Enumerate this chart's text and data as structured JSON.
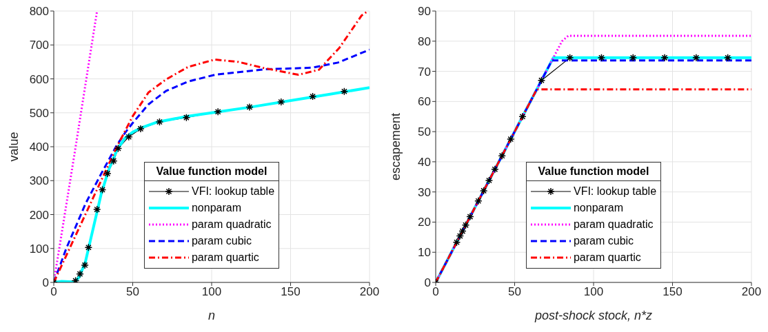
{
  "chart_data": [
    {
      "type": "line",
      "xlabel": "n",
      "ylabel": "value",
      "legend_title": "Value function model",
      "legend": "bottom",
      "grid": true,
      "xlim": [
        0,
        200
      ],
      "xticks": [
        0,
        50,
        100,
        150,
        200
      ],
      "ylim": [
        0,
        800
      ],
      "yticks": [
        0,
        100,
        200,
        300,
        400,
        500,
        600,
        700,
        800
      ],
      "series": [
        {
          "name": "VFI: lookup table",
          "color": "#000000",
          "marker": "cross",
          "line_style": "solid",
          "x": [
            0,
            13.8,
            16.6,
            19.7,
            22,
            27.4,
            30.8,
            34,
            37.9,
            40.8,
            47.5,
            55,
            67,
            84,
            104,
            124,
            144,
            164,
            184
          ],
          "values": [
            0,
            5,
            25,
            51,
            103,
            215,
            273,
            321,
            358,
            395,
            429,
            453,
            473,
            486,
            503,
            517,
            532,
            548,
            563
          ]
        },
        {
          "name": "nonparam",
          "color": "#00ffff",
          "marker": "none",
          "line_style": "solid",
          "x": [
            0,
            5,
            10,
            13,
            16,
            20,
            25,
            30,
            35,
            40,
            45,
            50,
            55,
            65,
            85,
            100,
            125,
            150,
            175,
            200
          ],
          "values": [
            0,
            3,
            2,
            0,
            15,
            60,
            160,
            260,
            335,
            390,
            425,
            443,
            455,
            472,
            490,
            500,
            517,
            536,
            555,
            574
          ]
        },
        {
          "name": "param quadratic",
          "color": "#ff00ff",
          "marker": "none",
          "line_style": "dotted",
          "x": [
            0,
            13,
            27.4
          ],
          "values": [
            0,
            375,
            800
          ]
        },
        {
          "name": "param cubic",
          "color": "#0000ff",
          "marker": "none",
          "line_style": "dashed",
          "x": [
            0,
            8,
            17,
            20,
            30,
            40,
            45,
            50,
            60,
            71,
            85,
            102,
            133,
            164,
            180,
            200
          ],
          "values": [
            0,
            101,
            198,
            231,
            320,
            405,
            440,
            470,
            525,
            564,
            592,
            612,
            628,
            633,
            648,
            686
          ]
        },
        {
          "name": "param quartic",
          "color": "#ff0000",
          "marker": "none",
          "line_style": "dashdot",
          "x": [
            0,
            10,
            20,
            30,
            40,
            50,
            60,
            71,
            85,
            102,
            117,
            133,
            155,
            168,
            181,
            195,
            199
          ],
          "values": [
            0,
            100,
            200,
            300,
            400,
            490,
            560,
            598,
            635,
            657,
            650,
            632,
            612,
            627,
            692,
            787,
            800
          ]
        }
      ]
    },
    {
      "type": "line",
      "xlabel": "post-shock stock, n*z",
      "ylabel": "escapement",
      "legend_title": "Value function model",
      "legend": "bottom",
      "grid": true,
      "xlim": [
        0,
        200
      ],
      "xticks": [
        0,
        50,
        100,
        150,
        200
      ],
      "ylim": [
        0,
        90
      ],
      "yticks": [
        0,
        10,
        20,
        30,
        40,
        50,
        60,
        70,
        80,
        90
      ],
      "series": [
        {
          "name": "VFI: lookup table",
          "color": "#000000",
          "marker": "cross",
          "line_style": "solid",
          "x": [
            0,
            13.3,
            15.4,
            17,
            19,
            21.8,
            27,
            30.4,
            33.8,
            37.5,
            42,
            47.5,
            55,
            67,
            85,
            105,
            125,
            145,
            165,
            185
          ],
          "values": [
            0,
            13.3,
            15.4,
            17,
            19,
            21.8,
            27,
            30.4,
            33.8,
            37.5,
            42,
            47.5,
            55,
            67,
            74.5,
            74.5,
            74.5,
            74.5,
            74.5,
            74.5
          ]
        },
        {
          "name": "nonparam",
          "color": "#00ffff",
          "marker": "none",
          "line_style": "solid",
          "x": [
            0,
            74.5,
            200
          ],
          "values": [
            0,
            74.5,
            74.5
          ]
        },
        {
          "name": "param quadratic",
          "color": "#ff00ff",
          "marker": "none",
          "line_style": "dotted",
          "x": [
            0,
            80,
            84,
            200
          ],
          "values": [
            0,
            80,
            81.8,
            81.8
          ]
        },
        {
          "name": "param cubic",
          "color": "#0000ff",
          "marker": "none",
          "line_style": "dashed",
          "x": [
            0,
            73.6,
            200
          ],
          "values": [
            0,
            73.6,
            73.6
          ]
        },
        {
          "name": "param quartic",
          "color": "#ff0000",
          "marker": "none",
          "line_style": "dashdot",
          "x": [
            0,
            64,
            200
          ],
          "values": [
            0,
            64,
            64
          ]
        }
      ]
    }
  ]
}
